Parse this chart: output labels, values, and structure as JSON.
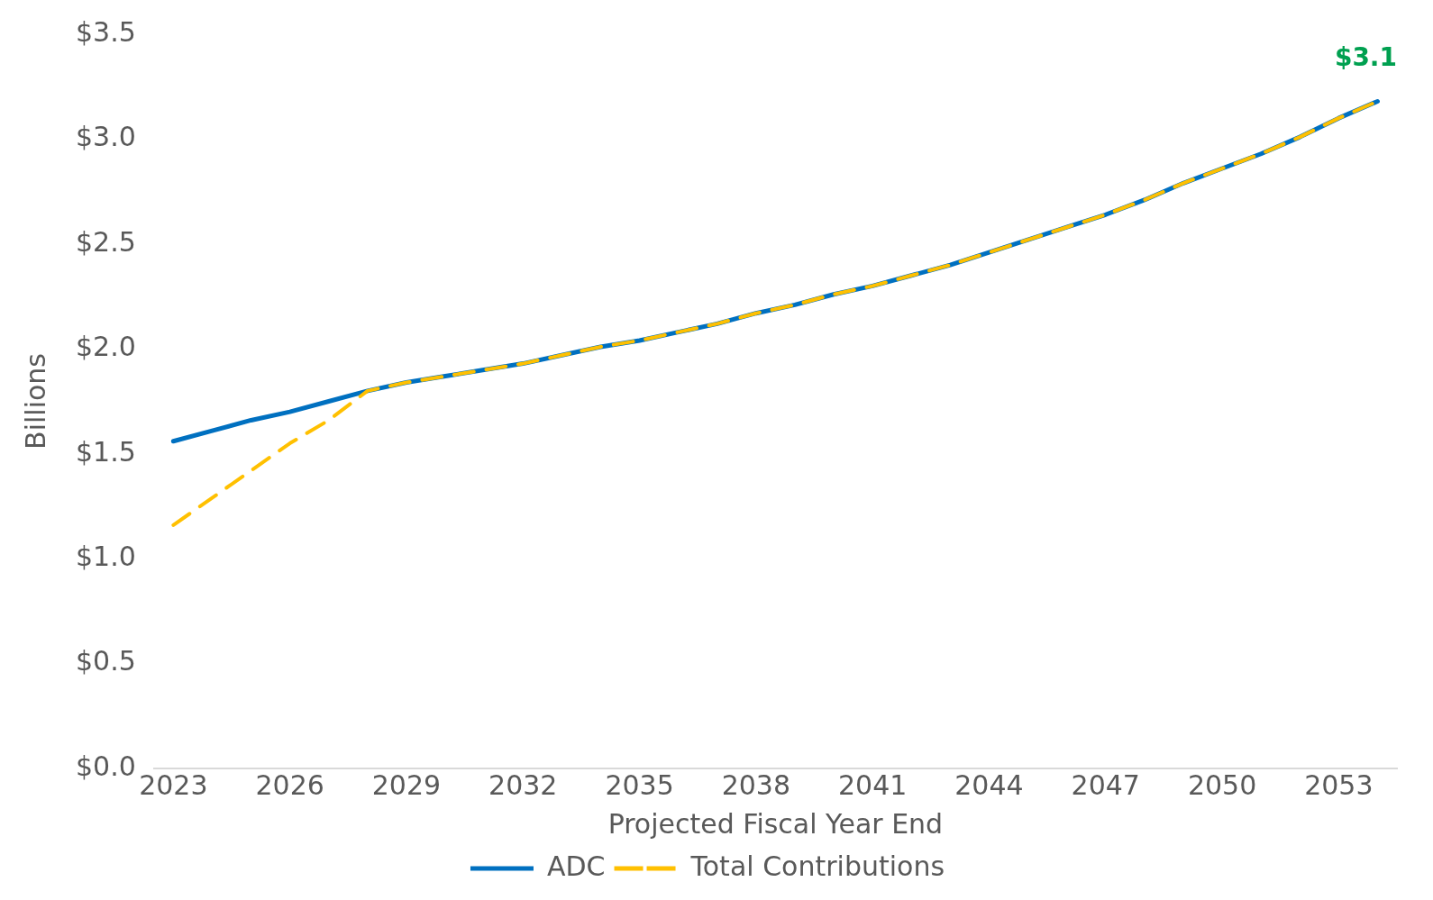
{
  "chart_data": {
    "type": "line",
    "xlabel": "Projected Fiscal Year End",
    "ylabel": "Billions",
    "x": [
      2023,
      2024,
      2025,
      2026,
      2027,
      2028,
      2029,
      2030,
      2031,
      2032,
      2033,
      2034,
      2035,
      2036,
      2037,
      2038,
      2039,
      2040,
      2041,
      2042,
      2043,
      2044,
      2045,
      2046,
      2047,
      2048,
      2049,
      2050,
      2051,
      2052,
      2053,
      2054
    ],
    "series": [
      {
        "name": "ADC",
        "color": "#0070c0",
        "line_style": "solid",
        "values": [
          1.56,
          1.61,
          1.66,
          1.7,
          1.75,
          1.8,
          1.84,
          1.87,
          1.9,
          1.93,
          1.97,
          2.01,
          2.04,
          2.08,
          2.12,
          2.17,
          2.21,
          2.26,
          2.3,
          2.35,
          2.4,
          2.46,
          2.52,
          2.58,
          2.64,
          2.71,
          2.79,
          2.86,
          2.93,
          3.01,
          3.1,
          3.18
        ]
      },
      {
        "name": "Total Contributions",
        "color": "#ffc000",
        "line_style": "dashed",
        "values": [
          1.16,
          1.29,
          1.42,
          1.55,
          1.66,
          1.8,
          1.84,
          1.87,
          1.9,
          1.93,
          1.97,
          2.01,
          2.04,
          2.08,
          2.12,
          2.17,
          2.21,
          2.26,
          2.3,
          2.35,
          2.4,
          2.46,
          2.52,
          2.58,
          2.64,
          2.71,
          2.79,
          2.86,
          2.93,
          3.01,
          3.1,
          3.18
        ]
      }
    ],
    "xlim": [
      2022.5,
      2054.5
    ],
    "xticks": [
      2023,
      2026,
      2029,
      2032,
      2035,
      2038,
      2041,
      2044,
      2047,
      2050,
      2053
    ],
    "ylim": [
      0,
      3.5
    ],
    "yticks": [
      {
        "value": 0,
        "label": "$0.0"
      },
      {
        "value": 0.5,
        "label": "$0.5"
      },
      {
        "value": 1,
        "label": "$1.0"
      },
      {
        "value": 1.5,
        "label": "$1.5"
      },
      {
        "value": 2,
        "label": "$2.0"
      },
      {
        "value": 2.5,
        "label": "$2.5"
      },
      {
        "value": 3,
        "label": "$3.0"
      },
      {
        "value": 3.5,
        "label": "$3.5"
      }
    ],
    "annotations": [
      "$3.1"
    ],
    "grid": false,
    "legend": "bottom",
    "marker": "none"
  }
}
